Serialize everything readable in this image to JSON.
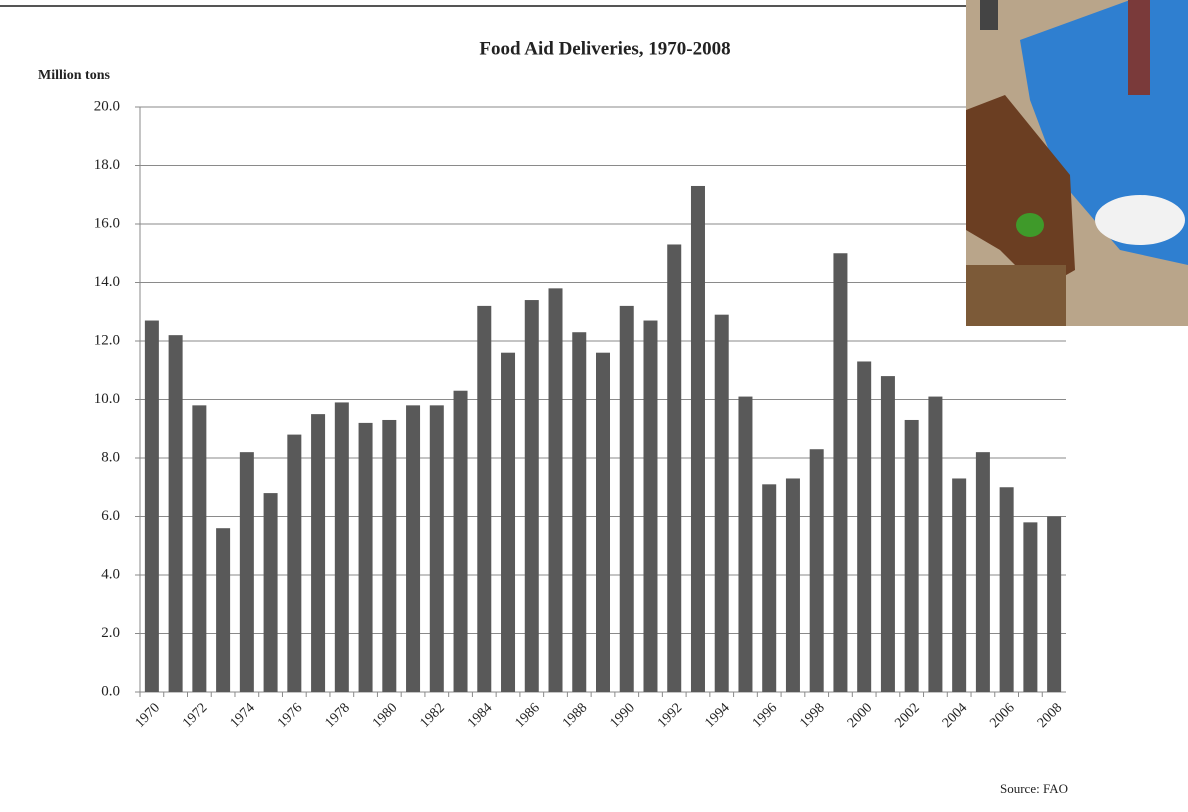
{
  "chart_data": {
    "type": "bar",
    "title": "Food Aid Deliveries,  1970-2008",
    "y_label": "Million tons",
    "source": "Source: FAO",
    "categories": [
      "1970",
      null,
      "1972",
      null,
      "1974",
      null,
      "1976",
      null,
      "1978",
      null,
      "1980",
      null,
      "1982",
      null,
      "1984",
      null,
      "1986",
      null,
      "1988",
      null,
      "1990",
      null,
      "1992",
      null,
      "1994",
      null,
      "1996",
      null,
      "1998",
      null,
      "2000",
      null,
      "2002",
      null,
      "2004",
      null,
      "2006",
      null,
      "2008"
    ],
    "values": [
      12.7,
      12.2,
      9.8,
      5.6,
      8.2,
      6.8,
      8.8,
      9.5,
      9.9,
      9.2,
      9.3,
      9.8,
      9.8,
      10.3,
      13.2,
      11.6,
      13.4,
      13.8,
      12.3,
      11.6,
      13.2,
      12.7,
      15.3,
      17.3,
      12.9,
      10.1,
      7.1,
      7.3,
      8.3,
      15.0,
      11.3,
      10.8,
      9.3,
      10.1,
      7.3,
      8.2,
      7.0,
      5.8,
      6.0
    ],
    "color": "#595959",
    "ylim": [
      0,
      20
    ],
    "yticks": [
      {
        "value": 0,
        "label": "0.0"
      },
      {
        "value": 2,
        "label": "2.0"
      },
      {
        "value": 4,
        "label": "4.0"
      },
      {
        "value": 6,
        "label": "6.0"
      },
      {
        "value": 8,
        "label": "8.0"
      },
      {
        "value": 10,
        "label": "10.0"
      },
      {
        "value": 12,
        "label": "12.0"
      },
      {
        "value": 14,
        "label": "14.0"
      },
      {
        "value": 16,
        "label": "16.0"
      },
      {
        "value": 18,
        "label": "18.0"
      },
      {
        "value": 20,
        "label": "20.0"
      }
    ],
    "grid": true
  }
}
